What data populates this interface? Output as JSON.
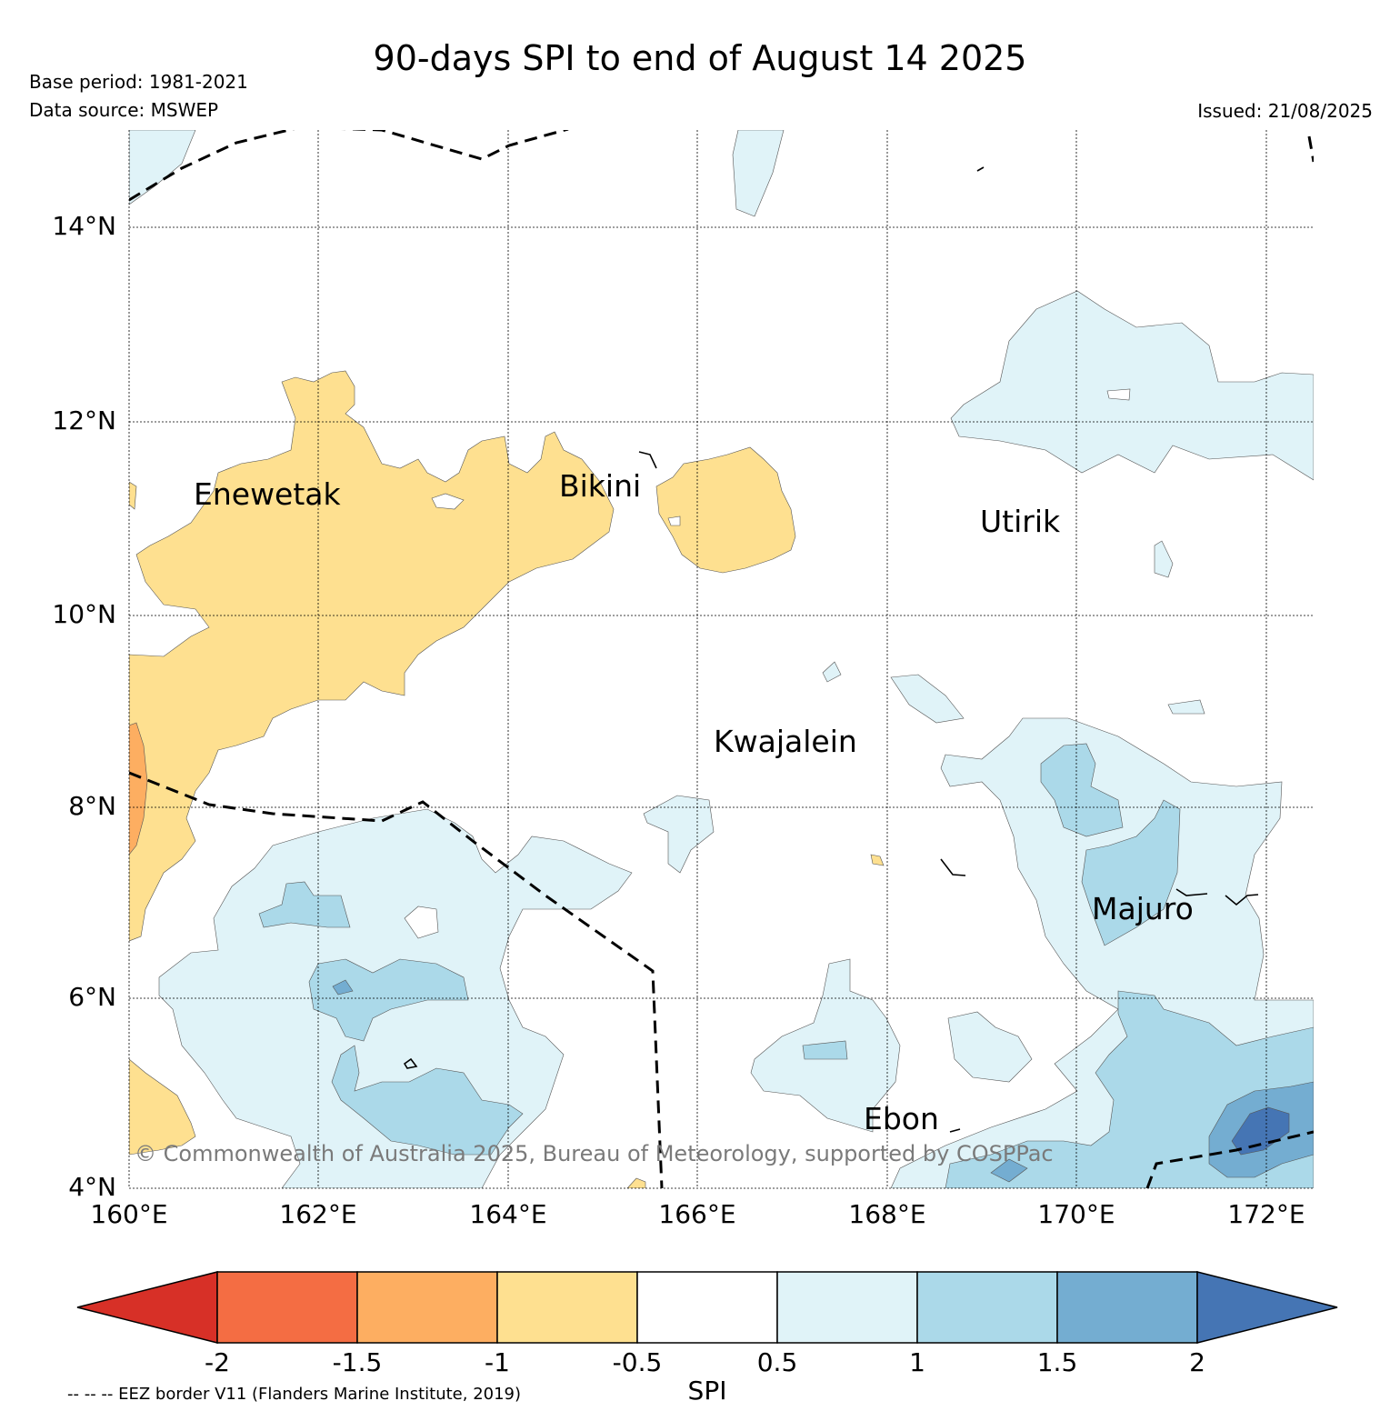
{
  "title": "90-days SPI to end of August 14 2025",
  "base_period": "Base period: 1981-2021",
  "data_source": "Data source: MSWEP",
  "issued": "Issued: 21/08/2025",
  "lat_labels": [
    "14°N",
    "12°N",
    "10°N",
    "8°N",
    "6°N",
    "4°N"
  ],
  "lon_labels": [
    "160°E",
    "162°E",
    "164°E",
    "166°E",
    "168°E",
    "170°E",
    "172°E"
  ],
  "places": {
    "enewetak": "Enewetak",
    "bikini": "Bikini",
    "utirik": "Utirik",
    "kwajalein": "Kwajalein",
    "majuro": "Majuro",
    "ebon": "Ebon"
  },
  "copyright": "© Commonwealth of Australia 2025, Bureau of Meteorology, supported by COSPPac",
  "colorbar": {
    "label": "SPI",
    "ticks": [
      "-2",
      "-1.5",
      "-1",
      "-0.5",
      "0.5",
      "1",
      "1.5",
      "2"
    ],
    "colors": [
      "#d73027",
      "#f46d43",
      "#fdae61",
      "#fee090",
      "#ffffff",
      "#e0f3f8",
      "#abd9e9",
      "#74add1",
      "#4575b4"
    ]
  },
  "eez_note": "-- -- -- EEZ border V11 (Flanders Marine Institute, 2019)"
}
